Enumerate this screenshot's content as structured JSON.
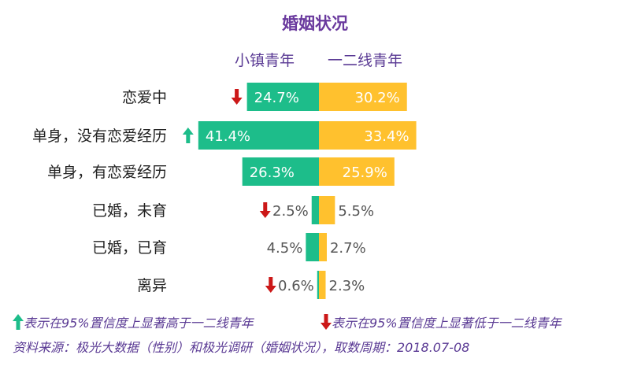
{
  "chart_data": {
    "type": "bar",
    "title": "婚姻状况",
    "categories": [
      "恋爱中",
      "单身，没有恋爱经历",
      "单身，有恋爱经历",
      "已婚，未育",
      "已婚，已育",
      "离异"
    ],
    "series": [
      {
        "name": "小镇青年",
        "values": [
          24.7,
          41.4,
          26.3,
          2.5,
          4.5,
          0.6
        ],
        "labels": [
          "24.7%",
          "41.4%",
          "26.3%",
          "2.5%",
          "4.5%",
          "0.6%"
        ]
      },
      {
        "name": "一二线青年",
        "values": [
          30.2,
          33.4,
          25.9,
          5.5,
          2.7,
          2.3
        ],
        "labels": [
          "30.2%",
          "33.4%",
          "25.9%",
          "5.5%",
          "2.7%",
          "2.3%"
        ]
      }
    ],
    "significance": [
      "down",
      "up",
      "none",
      "down",
      "none",
      "down"
    ],
    "colors": {
      "left": "#1dbd8a",
      "right": "#ffc12e",
      "up_arrow": "#1dbd8a",
      "down_arrow": "#cc1818"
    }
  },
  "legend_notes": {
    "up": "表示在95%置信度上显著高于一二线青年",
    "down": "表示在95%置信度上显著低于一二线青年"
  },
  "source": "资料来源：极光大数据（性别）和极光调研（婚姻状况），取数周期：2018.07-08"
}
